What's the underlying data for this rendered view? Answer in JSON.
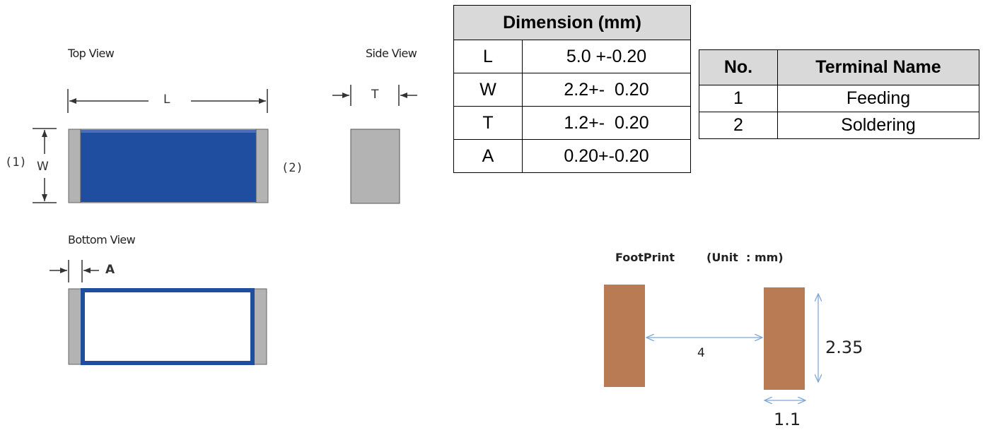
{
  "views": {
    "top_view_title": "Top View",
    "side_view_title": "Side View",
    "bottom_view_title": "Bottom View",
    "label_L": "L",
    "label_W": "W",
    "label_T": "T",
    "label_A": "A",
    "terminal_1": "(1)",
    "terminal_2": "(2)"
  },
  "dimension_table": {
    "header": "Dimension (mm)",
    "rows": [
      {
        "name": "L",
        "value": "5.0 +-0.20"
      },
      {
        "name": "W",
        "value": "2.2+-  0.20"
      },
      {
        "name": "T",
        "value": "1.2+-  0.20"
      },
      {
        "name": "A",
        "value": "0.20+-0.20"
      }
    ]
  },
  "terminal_table": {
    "headers": [
      "No.",
      "Terminal Name"
    ],
    "rows": [
      {
        "no": "1",
        "name": "Feeding"
      },
      {
        "no": "2",
        "name": "Soldering"
      }
    ]
  },
  "footprint": {
    "title": "FootPrint",
    "unit": "(Unit  : mm)",
    "gap": "4",
    "height": "2.35",
    "width": "1.1"
  },
  "colors": {
    "body_blue": "#1f4ea0",
    "terminal_gray": "#b3b3b3",
    "pad_copper": "#b97b54",
    "arrow_blue": "#7fa7d6"
  }
}
